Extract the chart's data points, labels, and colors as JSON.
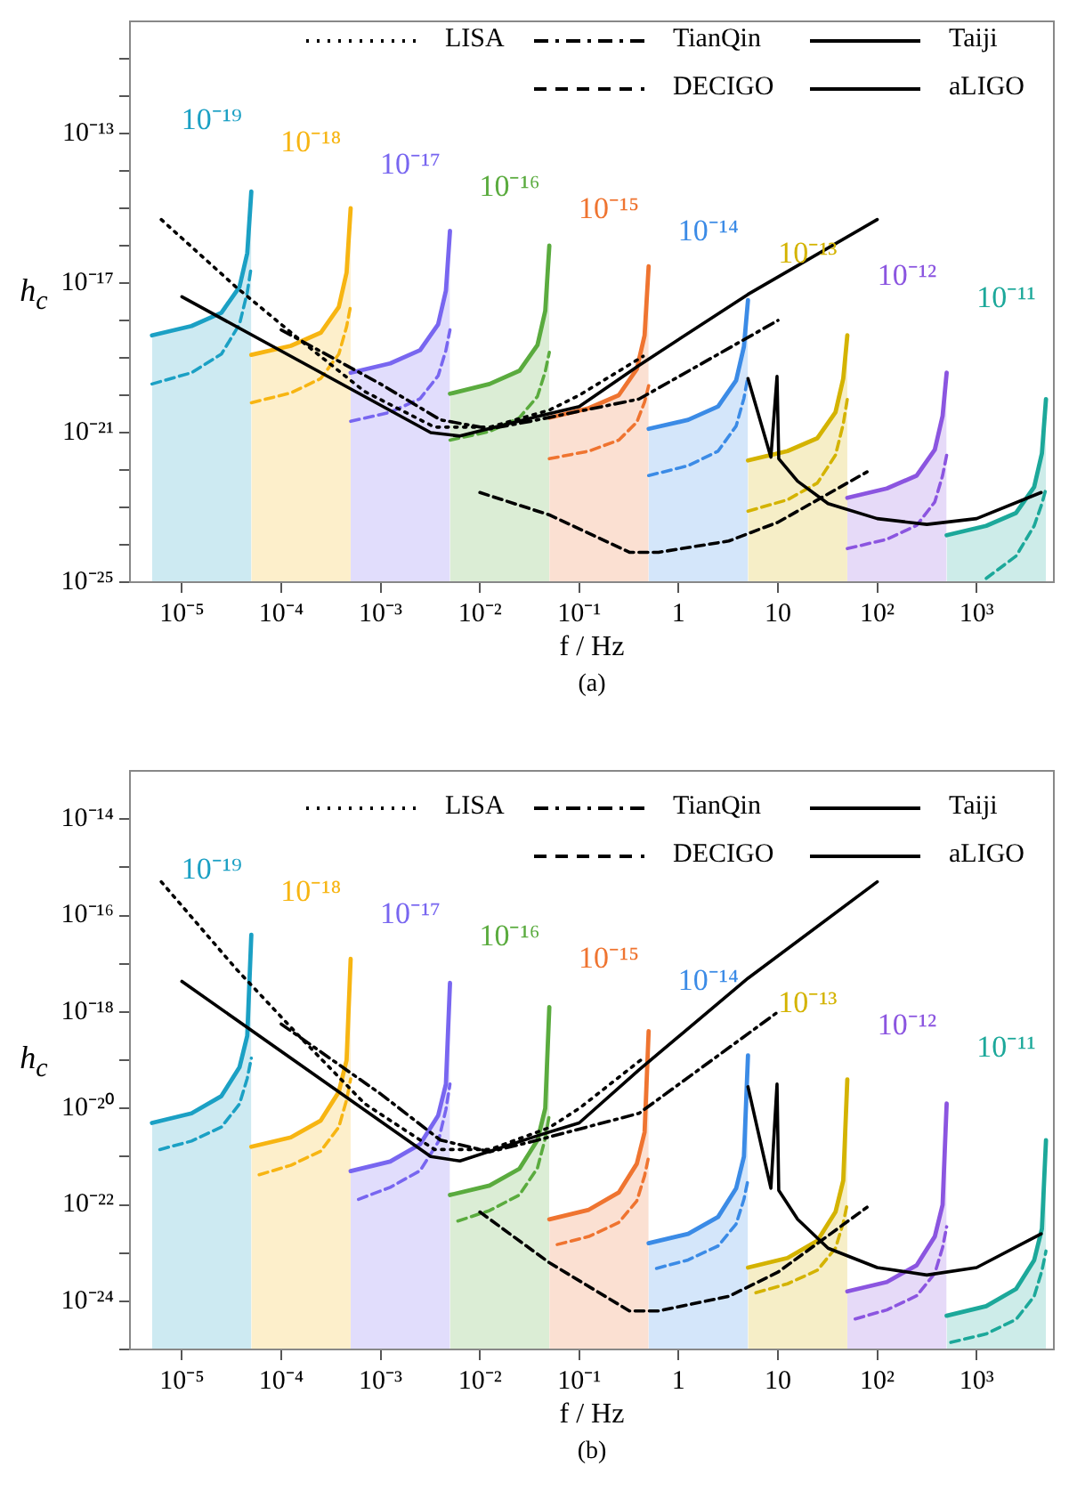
{
  "chart_data": [
    {
      "type": "line",
      "xlabel": "f / Hz",
      "ylabel": "h$_{c}$",
      "annotations": [
        "(a)"
      ],
      "log": "xy",
      "grid": false,
      "legend": "top",
      "marker": "none",
      "xlim": [
        3e-06,
        6000.0
      ],
      "ylim": [
        1e-25,
        1e-10
      ],
      "xticks": [
        {
          "value": 1e-05,
          "label": "10⁻⁵"
        },
        {
          "value": 0.0001,
          "label": "10⁻⁴"
        },
        {
          "value": 0.001,
          "label": "10⁻³"
        },
        {
          "value": 0.01,
          "label": "10⁻²"
        },
        {
          "value": 0.1,
          "label": "10⁻¹"
        },
        {
          "value": 1,
          "label": "1"
        },
        {
          "value": 10,
          "label": "10"
        },
        {
          "value": 100,
          "label": "10²"
        },
        {
          "value": 1000,
          "label": "10³"
        }
      ],
      "yticks": [
        {
          "value": 1e-25,
          "label": "10⁻²⁵"
        },
        {
          "value": 1e-24,
          "label": null
        },
        {
          "value": 1e-23,
          "label": null
        },
        {
          "value": 1e-22,
          "label": null
        },
        {
          "value": 1e-21,
          "label": "10⁻²¹"
        },
        {
          "value": 1e-20,
          "label": null
        },
        {
          "value": 1e-19,
          "label": null
        },
        {
          "value": 1e-18,
          "label": null
        },
        {
          "value": 1e-17,
          "label": "10⁻¹⁷"
        },
        {
          "value": 1e-16,
          "label": null
        },
        {
          "value": 1e-15,
          "label": null
        },
        {
          "value": 1e-14,
          "label": null
        },
        {
          "value": 1e-13,
          "label": "10⁻¹³"
        },
        {
          "value": 1e-12,
          "label": null
        },
        {
          "value": 1e-11,
          "label": null
        }
      ],
      "series": [
        {
          "type": "area",
          "name": "10⁻¹⁹",
          "color": "#1ba0c4",
          "x": [
            5e-06,
            1.25e-05,
            2.5e-05,
            3.8e-05,
            4.55e-05,
            5e-05
          ],
          "values": [
            4e-19,
            7.1e-19,
            1.6e-18,
            7.9e-18,
            6.3e-17,
            2.8e-15
          ]
        },
        {
          "color": "#1ba0c4",
          "line_style": "dashed",
          "x": [
            5e-06,
            1.25e-05,
            2.5e-05,
            3.8e-05,
            4.55e-05,
            5e-05
          ],
          "values": [
            2e-20,
            4e-20,
            1.26e-19,
            7.9e-19,
            5.6e-18,
            2.8e-17
          ]
        },
        {
          "type": "area",
          "name": "10⁻¹⁸",
          "color": "#f7b512",
          "x": [
            5e-05,
            0.000125,
            0.00025,
            0.00038,
            0.000455,
            0.0005
          ],
          "values": [
            1.2e-19,
            2.1e-19,
            4.7e-19,
            2.3e-18,
            1.9e-17,
            1e-15
          ]
        },
        {
          "color": "#f7b512",
          "line_style": "dashed",
          "x": [
            5e-05,
            0.000125,
            0.00025,
            0.00038,
            0.000455,
            0.0005
          ],
          "values": [
            6.3e-21,
            1.15e-20,
            2.8e-20,
            1.26e-19,
            6.8e-19,
            2.5e-18
          ]
        },
        {
          "type": "area",
          "name": "10⁻¹⁷",
          "color": "#7866f0",
          "x": [
            0.0005,
            0.00125,
            0.0025,
            0.0038,
            0.00455,
            0.005
          ],
          "values": [
            4e-20,
            7.1e-20,
            1.6e-19,
            7.9e-19,
            6.3e-18,
            2.5e-16
          ]
        },
        {
          "color": "#7866f0",
          "line_style": "dashed",
          "x": [
            0.0005,
            0.00125,
            0.0025,
            0.0038,
            0.00455,
            0.005
          ],
          "values": [
            2e-21,
            3.5e-21,
            8.1e-21,
            3.3e-20,
            1.6e-19,
            5.6e-19
          ]
        },
        {
          "type": "area",
          "name": "10⁻¹⁶",
          "color": "#5aab3e",
          "x": [
            0.005,
            0.0125,
            0.025,
            0.038,
            0.0455,
            0.05
          ],
          "values": [
            1.1e-20,
            2e-20,
            4.5e-20,
            2.2e-19,
            1.8e-18,
            1e-16
          ]
        },
        {
          "color": "#5aab3e",
          "line_style": "dashed",
          "x": [
            0.005,
            0.0125,
            0.025,
            0.038,
            0.0455,
            0.05
          ],
          "values": [
            6.3e-22,
            1.07e-21,
            2.5e-21,
            9.3e-21,
            4.3e-20,
            1.4e-19
          ]
        },
        {
          "type": "area",
          "name": "10⁻¹⁵",
          "color": "#ef7430",
          "x": [
            0.05,
            0.125,
            0.25,
            0.38,
            0.455,
            0.5
          ],
          "values": [
            2.5e-21,
            4.5e-21,
            1e-20,
            5e-20,
            4e-19,
            2.8e-17
          ]
        },
        {
          "color": "#ef7430",
          "line_style": "dashed",
          "x": [
            0.05,
            0.125,
            0.25,
            0.38,
            0.455,
            0.5
          ],
          "values": [
            2e-22,
            3.2e-22,
            6.3e-22,
            1.9e-21,
            6.6e-21,
            1.8e-20
          ]
        },
        {
          "type": "area",
          "name": "10⁻¹⁴",
          "color": "#3b8be6",
          "x": [
            0.5,
            1.25,
            2.5,
            3.8,
            4.55,
            5
          ],
          "values": [
            1.26e-21,
            2.2e-21,
            5e-21,
            2.5e-20,
            2e-19,
            3.5e-18
          ]
        },
        {
          "color": "#3b8be6",
          "line_style": "dashed",
          "x": [
            0.5,
            1.25,
            2.5,
            3.8,
            4.55,
            5
          ],
          "values": [
            7.1e-23,
            1.3e-22,
            3.2e-22,
            1.5e-21,
            8.3e-21,
            3.2e-20
          ]
        },
        {
          "type": "area",
          "name": "10⁻¹³",
          "color": "#d4b300",
          "x": [
            5,
            12.5,
            25,
            38,
            45.5,
            50
          ],
          "values": [
            1.8e-22,
            3.2e-22,
            7.1e-22,
            3.5e-21,
            2.8e-20,
            4e-19
          ]
        },
        {
          "color": "#d4b300",
          "line_style": "dashed",
          "x": [
            5,
            12.5,
            25,
            38,
            45.5,
            50
          ],
          "values": [
            7.9e-24,
            1.6e-23,
            4.5e-23,
            2.5e-22,
            1.7e-21,
            7.9e-21
          ]
        },
        {
          "type": "area",
          "name": "10⁻¹²",
          "color": "#8b55e0",
          "x": [
            50,
            125,
            250,
            380,
            455,
            500
          ],
          "values": [
            1.8e-23,
            3.2e-23,
            7.1e-23,
            3.5e-22,
            2.8e-21,
            4e-20
          ]
        },
        {
          "color": "#8b55e0",
          "line_style": "dashed",
          "x": [
            50,
            125,
            250,
            380,
            455,
            500
          ],
          "values": [
            7.9e-25,
            1.4e-24,
            3.3e-24,
            1.4e-23,
            7.1e-23,
            2.5e-22
          ]
        },
        {
          "type": "area",
          "name": "10⁻¹¹",
          "color": "#1ca89a",
          "x": [
            500,
            1250,
            2500,
            3800,
            4550,
            5000
          ],
          "values": [
            1.8e-24,
            3.2e-24,
            7.1e-24,
            3.5e-23,
            2.8e-22,
            7.9e-21
          ]
        },
        {
          "color": "#1ca89a",
          "line_style": "dashed",
          "x": [
            1250,
            2500,
            3800,
            4550,
            5000
          ],
          "values": [
            1.26e-25,
            5e-25,
            3.2e-24,
            1.26e-23,
            3.2e-23
          ]
        },
        {
          "name": "LISA",
          "color": "#000000",
          "line_style": "dotted",
          "x": [
            6.2e-06,
            3.5e-05,
            0.00016,
            0.00069,
            0.0035,
            0.0126,
            0.05,
            0.1,
            0.44
          ],
          "values": [
            5e-16,
            7.9e-18,
            2.8e-19,
            1.26e-20,
            1.4e-21,
            1.4e-21,
            4e-21,
            1e-20,
            1.1e-19
          ]
        },
        {
          "name": "TianQin",
          "color": "#000000",
          "line_style": "dashdot",
          "x": [
            0.0001,
            0.001,
            0.004,
            0.0126,
            0.032,
            0.4,
            10
          ],
          "values": [
            5.6e-19,
            2e-20,
            2.2e-21,
            1.26e-21,
            2e-21,
            7.9e-21,
            1e-18
          ]
        },
        {
          "name": "Taiji",
          "color": "#000000",
          "line_style": "solid",
          "x": [
            1e-05,
            0.0032,
            0.0063,
            0.04,
            0.1,
            0.4,
            5.0,
            100
          ],
          "values": [
            4.3e-18,
            1e-21,
            8.1e-22,
            2.8e-21,
            5e-21,
            6.3e-20,
            5e-18,
            5e-16
          ]
        },
        {
          "name": "DECIGO",
          "color": "#000000",
          "line_style": "dashed",
          "x": [
            0.01,
            0.05,
            0.32,
            0.63,
            3.2,
            10,
            79
          ],
          "values": [
            2.5e-23,
            6.3e-24,
            6.3e-25,
            6.3e-25,
            1.26e-24,
            4e-24,
            8.9e-23
          ]
        },
        {
          "name": "aLIGO",
          "color": "#000000",
          "line_style": "solid",
          "x": [
            5.0,
            8.5,
            9.8,
            10.2,
            15.8,
            32,
            100,
            316,
            1000,
            4470
          ],
          "values": [
            2.8e-20,
            2.2e-22,
            3.2e-20,
            2e-22,
            5e-23,
            1.26e-23,
            5e-24,
            3.5e-24,
            5e-24,
            2.5e-23
          ]
        }
      ]
    },
    {
      "type": "line",
      "xlabel": "f / Hz",
      "ylabel": "h$_{c}$",
      "annotations": [
        "(b)"
      ],
      "log": "xy",
      "grid": false,
      "legend": "top",
      "marker": "none",
      "xlim": [
        3e-06,
        6000.0
      ],
      "ylim": [
        1e-25,
        1e-13
      ],
      "xticks": [
        {
          "value": 1e-05,
          "label": "10⁻⁵"
        },
        {
          "value": 0.0001,
          "label": "10⁻⁴"
        },
        {
          "value": 0.001,
          "label": "10⁻³"
        },
        {
          "value": 0.01,
          "label": "10⁻²"
        },
        {
          "value": 0.1,
          "label": "10⁻¹"
        },
        {
          "value": 1,
          "label": "1"
        },
        {
          "value": 10,
          "label": "10"
        },
        {
          "value": 100,
          "label": "10²"
        },
        {
          "value": 1000,
          "label": "10³"
        }
      ],
      "yticks": [
        {
          "value": 1e-25,
          "label": null
        },
        {
          "value": 1e-24,
          "label": "10⁻²⁴"
        },
        {
          "value": 1e-23,
          "label": null
        },
        {
          "value": 1e-22,
          "label": "10⁻²²"
        },
        {
          "value": 1e-21,
          "label": null
        },
        {
          "value": 1e-20,
          "label": "10⁻²⁰"
        },
        {
          "value": 1e-19,
          "label": null
        },
        {
          "value": 1e-18,
          "label": "10⁻¹⁸"
        },
        {
          "value": 1e-17,
          "label": null
        },
        {
          "value": 1e-16,
          "label": "10⁻¹⁶"
        },
        {
          "value": 1e-15,
          "label": null
        },
        {
          "value": 1e-14,
          "label": "10⁻¹⁴"
        }
      ],
      "series": [
        {
          "type": "area",
          "name": "10⁻¹⁹",
          "color": "#1ba0c4",
          "x": [
            5e-06,
            1.25e-05,
            2.5e-05,
            3.8e-05,
            4.55e-05,
            5e-05
          ],
          "values": [
            5e-21,
            7.9e-21,
            1.8e-20,
            7.1e-20,
            3.2e-19,
            4e-17
          ]
        },
        {
          "color": "#1ba0c4",
          "line_style": "dashed",
          "x": [
            6e-06,
            1.25e-05,
            2.5e-05,
            3.8e-05,
            4.55e-05,
            5e-05
          ],
          "values": [
            1.4e-21,
            2.1e-21,
            4.1e-21,
            1.23e-20,
            4.2e-20,
            1.1e-19
          ]
        },
        {
          "type": "area",
          "name": "10⁻¹⁸",
          "color": "#f7b512",
          "x": [
            5e-05,
            0.000125,
            0.00025,
            0.00038,
            0.000455,
            0.0005
          ],
          "values": [
            1.6e-21,
            2.5e-21,
            5.6e-21,
            2.2e-20,
            1e-19,
            1.26e-17
          ]
        },
        {
          "color": "#f7b512",
          "line_style": "dashed",
          "x": [
            6e-05,
            0.000125,
            0.00025,
            0.00038,
            0.000455,
            0.0005
          ],
          "values": [
            4.2e-22,
            6.6e-22,
            1.3e-21,
            4.1e-21,
            1.5e-20,
            4.1e-20
          ]
        },
        {
          "type": "area",
          "name": "10⁻¹⁷",
          "color": "#7866f0",
          "x": [
            0.0005,
            0.00125,
            0.0025,
            0.0038,
            0.00455,
            0.005
          ],
          "values": [
            5e-22,
            7.9e-22,
            1.8e-21,
            7.1e-21,
            3.2e-20,
            4e-18
          ]
        },
        {
          "color": "#7866f0",
          "line_style": "dashed",
          "x": [
            0.0006,
            0.00125,
            0.0025,
            0.0038,
            0.00455,
            0.005
          ],
          "values": [
            1.3e-22,
            2.3e-22,
            5.1e-22,
            2e-21,
            9.5e-21,
            3.2e-20
          ]
        },
        {
          "type": "area",
          "name": "10⁻¹⁶",
          "color": "#5aab3e",
          "x": [
            0.005,
            0.0125,
            0.025,
            0.038,
            0.0455,
            0.05
          ],
          "values": [
            1.6e-22,
            2.5e-22,
            5.6e-22,
            2.2e-21,
            1e-20,
            1.26e-18
          ]
        },
        {
          "color": "#5aab3e",
          "line_style": "dashed",
          "x": [
            0.006,
            0.0125,
            0.025,
            0.038,
            0.0455,
            0.05
          ],
          "values": [
            4.6e-23,
            7.6e-23,
            1.6e-22,
            5.8e-22,
            2.4e-21,
            7.4e-21
          ]
        },
        {
          "type": "area",
          "name": "10⁻¹⁵",
          "color": "#ef7430",
          "x": [
            0.05,
            0.125,
            0.25,
            0.38,
            0.455,
            0.5
          ],
          "values": [
            5e-23,
            7.9e-23,
            1.8e-22,
            7.1e-22,
            3.2e-21,
            4e-19
          ]
        },
        {
          "color": "#ef7430",
          "line_style": "dashed",
          "x": [
            0.06,
            0.125,
            0.25,
            0.38,
            0.455,
            0.5
          ],
          "values": [
            1.5e-23,
            2.2e-23,
            4.3e-23,
            1.2e-22,
            4e-22,
            1e-21
          ]
        },
        {
          "type": "area",
          "name": "10⁻¹⁴",
          "color": "#3b8be6",
          "x": [
            0.5,
            1.25,
            2.5,
            3.8,
            4.55,
            5
          ],
          "values": [
            1.6e-23,
            2.5e-23,
            5.6e-23,
            2.2e-22,
            1e-21,
            1.26e-19
          ]
        },
        {
          "color": "#3b8be6",
          "line_style": "dashed",
          "x": [
            0.6,
            1.25,
            2.5,
            3.8,
            4.55,
            5
          ],
          "values": [
            4.8e-24,
            7.2e-24,
            1.4e-23,
            4e-23,
            1.3e-22,
            3.3e-22
          ]
        },
        {
          "type": "area",
          "name": "10⁻¹³",
          "color": "#d4b300",
          "x": [
            5,
            12.5,
            25,
            38,
            45.5,
            50
          ],
          "values": [
            5e-24,
            7.9e-24,
            1.8e-23,
            7.1e-23,
            3.2e-22,
            4e-20
          ]
        },
        {
          "color": "#d4b300",
          "line_style": "dashed",
          "x": [
            6,
            12.5,
            25,
            38,
            45.5,
            50
          ],
          "values": [
            1.5e-24,
            2.3e-24,
            4.4e-24,
            1.26e-23,
            4.2e-23,
            1.07e-22
          ]
        },
        {
          "type": "area",
          "name": "10⁻¹²",
          "color": "#8b55e0",
          "x": [
            50,
            125,
            250,
            380,
            455,
            500
          ],
          "values": [
            1.6e-24,
            2.5e-24,
            5.6e-24,
            2.2e-23,
            1e-22,
            1.26e-20
          ]
        },
        {
          "color": "#8b55e0",
          "line_style": "dashed",
          "x": [
            60,
            125,
            250,
            380,
            455,
            500
          ],
          "values": [
            4.3e-25,
            6.6e-25,
            1.3e-24,
            3.8e-24,
            1.3e-23,
            3.5e-23
          ]
        },
        {
          "type": "area",
          "name": "10⁻¹¹",
          "color": "#1ca89a",
          "x": [
            500,
            1250,
            2500,
            3800,
            4550,
            5000
          ],
          "values": [
            5e-25,
            7.9e-25,
            1.8e-24,
            7.1e-24,
            3.2e-23,
            2.2e-21
          ]
        },
        {
          "color": "#1ca89a",
          "line_style": "dashed",
          "x": [
            550,
            1250,
            2500,
            3800,
            4550,
            5000
          ],
          "values": [
            1.4e-25,
            2.1e-25,
            4.2e-25,
            1.26e-24,
            4.3e-24,
            1.1e-23
          ]
        },
        {
          "name": "LISA",
          "color": "#000000",
          "line_style": "dotted",
          "x": [
            6.2e-06,
            3.5e-05,
            0.00016,
            0.00069,
            0.0035,
            0.0126,
            0.05,
            0.1,
            0.44
          ],
          "values": [
            5e-16,
            7.9e-18,
            2.8e-19,
            1.26e-20,
            1.4e-21,
            1.4e-21,
            4e-21,
            1e-20,
            1.1e-19
          ]
        },
        {
          "name": "TianQin",
          "color": "#000000",
          "line_style": "dashdot",
          "x": [
            0.0001,
            0.001,
            0.004,
            0.0126,
            0.032,
            0.4,
            10
          ],
          "values": [
            5.6e-19,
            2e-20,
            2.2e-21,
            1.26e-21,
            2e-21,
            7.9e-21,
            1e-18
          ]
        },
        {
          "name": "Taiji",
          "color": "#000000",
          "line_style": "solid",
          "x": [
            1e-05,
            0.0032,
            0.0063,
            0.04,
            0.1,
            0.4,
            5.0,
            100
          ],
          "values": [
            4.3e-18,
            1e-21,
            8.1e-22,
            2.8e-21,
            5e-21,
            6.3e-20,
            5e-18,
            5e-16
          ]
        },
        {
          "name": "DECIGO",
          "color": "#000000",
          "line_style": "dashed",
          "x": [
            0.01,
            0.05,
            0.32,
            0.63,
            3.2,
            10,
            79
          ],
          "values": [
            7.1e-23,
            6.3e-24,
            6.3e-25,
            6.3e-25,
            1.26e-24,
            4e-24,
            8.9e-23
          ]
        },
        {
          "name": "aLIGO",
          "color": "#000000",
          "line_style": "solid",
          "x": [
            5.0,
            8.5,
            9.8,
            10.2,
            15.8,
            32,
            100,
            316,
            1000,
            4470
          ],
          "values": [
            2.8e-20,
            2.2e-22,
            3.2e-20,
            2e-22,
            5e-23,
            1.26e-23,
            5e-24,
            3.5e-24,
            5e-24,
            2.5e-23
          ]
        }
      ]
    }
  ]
}
